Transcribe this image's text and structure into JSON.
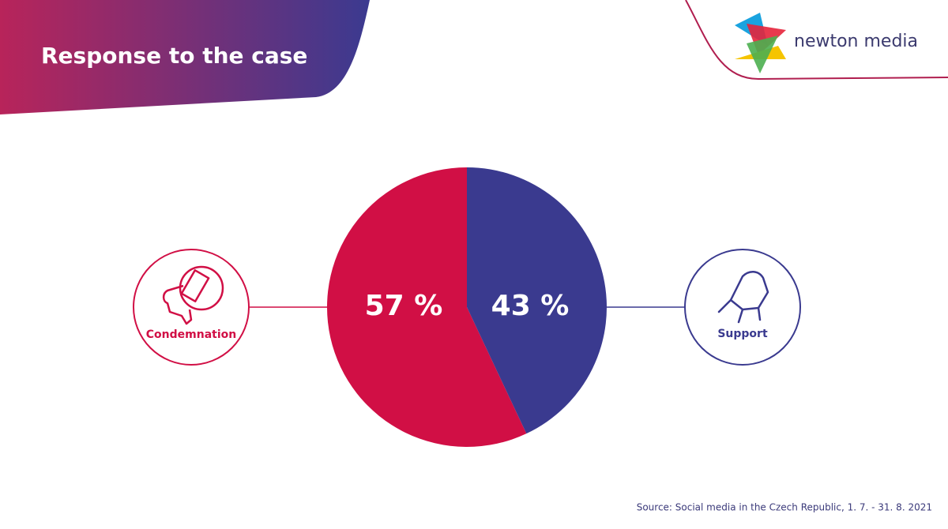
{
  "header": {
    "title": "Response to the case",
    "brand": "newton media"
  },
  "chart_data": {
    "type": "pie",
    "categories": [
      "Condemnation",
      "Support"
    ],
    "values": [
      57,
      43
    ],
    "value_labels": [
      "57 %",
      "43 %"
    ],
    "colors": [
      "#d10f45",
      "#3a3a8f"
    ]
  },
  "footer": {
    "source": "Source: Social media in the Czech Republic, 1. 7. - 31. 8. 2021"
  }
}
